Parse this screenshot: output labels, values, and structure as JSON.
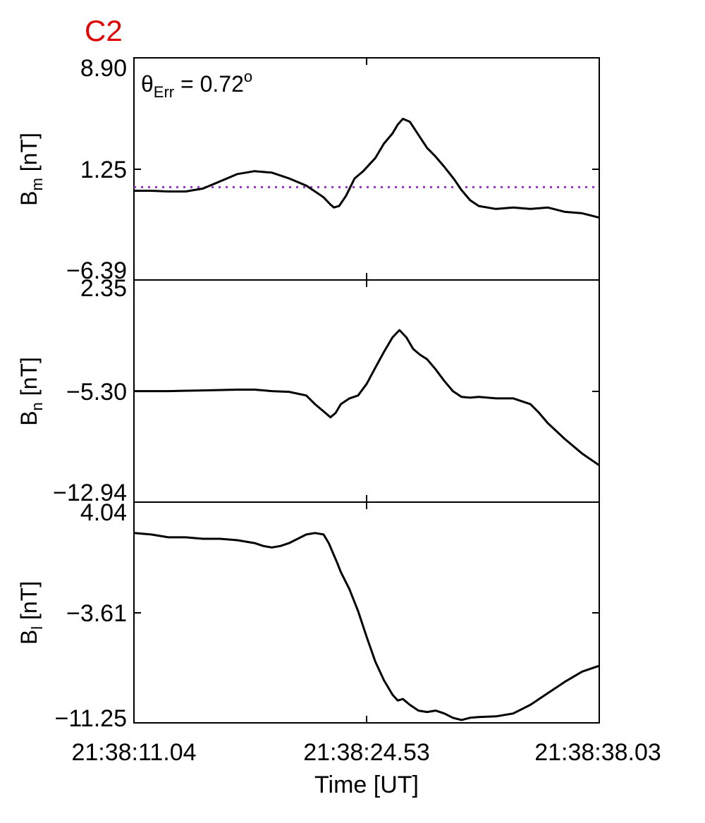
{
  "chart_data": {
    "type": "line",
    "title": "C2",
    "annotation": {
      "prefix": "θ",
      "sub": "Err",
      "text": " =  0.72",
      "sup": "o"
    },
    "xlabel": "Time [UT]",
    "x_ticks": [
      "21:38:11.04",
      "21:38:24.53",
      "21:38:38.03"
    ],
    "x_range_seconds": [
      0,
      26.99
    ],
    "panels": [
      {
        "ylabel": {
          "main": "B",
          "sub": "m",
          "unit": " [nT]"
        },
        "y_ticks": [
          "8.90",
          "1.25",
          "−6.39"
        ],
        "ylim": [
          -6.39,
          8.9
        ],
        "reference_line": {
          "y": 0.0,
          "color": "#9b30d0",
          "style": "dotted"
        },
        "series": [
          {
            "color": "#000000",
            "x": [
              0,
              1,
              2,
              3,
              4,
              5,
              6,
              7,
              8,
              9,
              10,
              10.5,
              11,
              11.4,
              11.6,
              11.9,
              12.3,
              12.8,
              13.3,
              14,
              14.5,
              15,
              15.3,
              15.6,
              16,
              16.5,
              17,
              17.5,
              18,
              18.6,
              19,
              19.5,
              20,
              21,
              22,
              23,
              24,
              25,
              26,
              26.99
            ],
            "y": [
              -0.25,
              -0.25,
              -0.3,
              -0.3,
              -0.1,
              0.4,
              0.9,
              1.1,
              1.0,
              0.6,
              0.1,
              -0.3,
              -0.7,
              -1.2,
              -1.4,
              -1.3,
              -0.6,
              0.6,
              1.1,
              2.0,
              3.0,
              3.7,
              4.3,
              4.7,
              4.5,
              3.6,
              2.7,
              2.1,
              1.4,
              0.5,
              -0.2,
              -0.9,
              -1.3,
              -1.5,
              -1.4,
              -1.5,
              -1.4,
              -1.7,
              -1.8,
              -2.1
            ]
          }
        ]
      },
      {
        "ylabel": {
          "main": "B",
          "sub": "n",
          "unit": " [nT]"
        },
        "y_ticks": [
          "2.35",
          "−5.30",
          "−12.94"
        ],
        "ylim": [
          -12.94,
          2.35
        ],
        "series": [
          {
            "color": "#000000",
            "x": [
              0,
              2,
              4,
              6,
              7,
              8,
              9,
              10,
              10.5,
              11,
              11.4,
              11.7,
              12,
              12.5,
              13,
              13.5,
              14,
              14.5,
              15,
              15.4,
              15.8,
              16.2,
              16.6,
              17,
              17.5,
              18,
              18.5,
              19,
              19.5,
              20,
              21,
              22,
              23,
              23.5,
              24,
              25,
              26,
              26.99
            ],
            "y": [
              -5.3,
              -5.3,
              -5.25,
              -5.2,
              -5.2,
              -5.3,
              -5.35,
              -5.6,
              -6.2,
              -6.7,
              -7.1,
              -6.8,
              -6.2,
              -5.8,
              -5.6,
              -4.8,
              -3.7,
              -2.6,
              -1.6,
              -1.1,
              -1.6,
              -2.4,
              -2.8,
              -3.1,
              -3.8,
              -4.6,
              -5.3,
              -5.7,
              -5.75,
              -5.7,
              -5.8,
              -5.8,
              -6.2,
              -6.8,
              -7.5,
              -8.6,
              -9.6,
              -10.4
            ]
          }
        ]
      },
      {
        "ylabel": {
          "main": "B",
          "sub": "l",
          "unit": " [nT]"
        },
        "y_ticks": [
          "4.04",
          "−3.61",
          "−11.25"
        ],
        "ylim": [
          -11.25,
          4.04
        ],
        "series": [
          {
            "color": "#000000",
            "x": [
              0,
              1,
              2,
              3,
              4,
              5,
              6,
              7,
              7.5,
              8,
              8.5,
              9,
              9.5,
              10,
              10.5,
              11,
              11.3,
              11.8,
              12,
              12.5,
              13,
              13.5,
              14,
              14.5,
              15,
              15.3,
              15.6,
              16,
              16.5,
              17,
              17.5,
              18,
              18.5,
              19,
              19.5,
              20,
              21,
              22,
              23,
              24,
              25,
              26,
              26.99
            ],
            "y": [
              1.9,
              1.8,
              1.6,
              1.6,
              1.5,
              1.5,
              1.4,
              1.2,
              1.0,
              0.9,
              1.0,
              1.2,
              1.5,
              1.8,
              1.9,
              1.8,
              1.2,
              -0.2,
              -0.8,
              -2.0,
              -3.5,
              -5.3,
              -7.0,
              -8.3,
              -9.3,
              -9.7,
              -9.6,
              -10.0,
              -10.4,
              -10.5,
              -10.4,
              -10.6,
              -10.9,
              -11.05,
              -10.9,
              -10.85,
              -10.8,
              -10.6,
              -10.0,
              -9.2,
              -8.4,
              -7.7,
              -7.3
            ]
          }
        ]
      }
    ]
  }
}
